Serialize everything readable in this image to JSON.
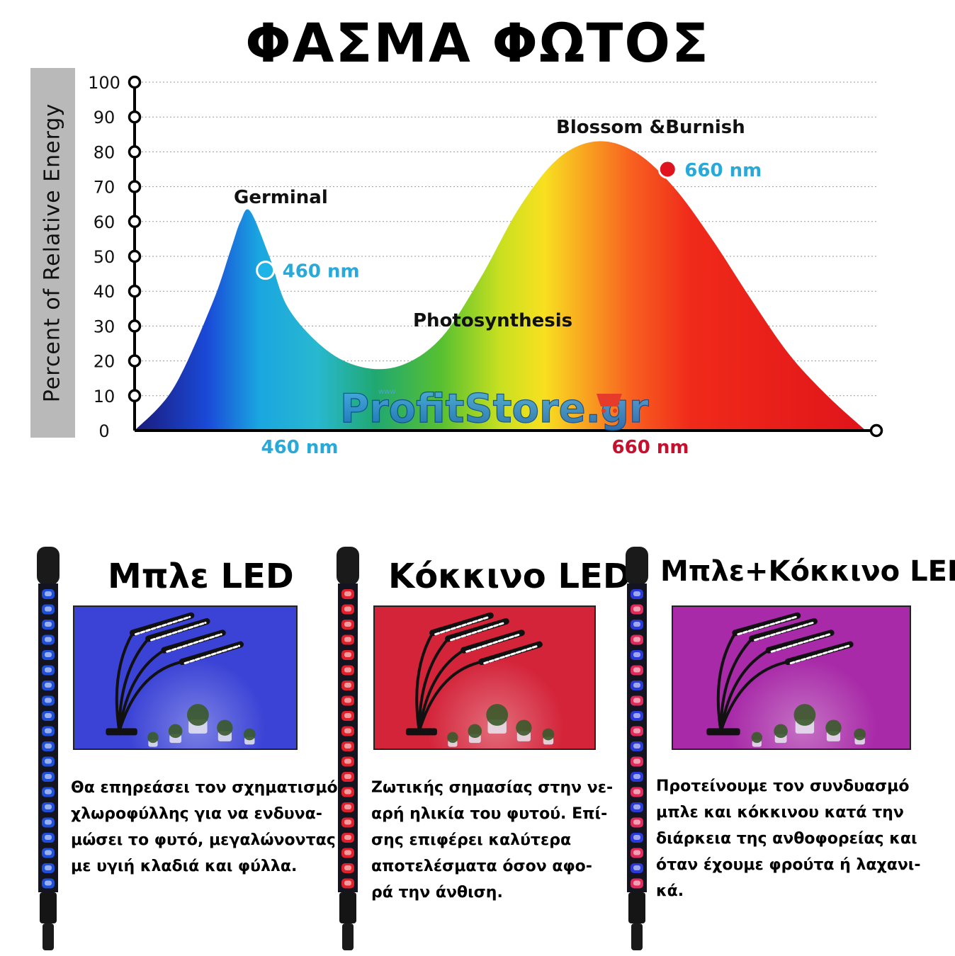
{
  "title": "ΦΑΣΜΑ ΦΩΤΟΣ",
  "chart_data": {
    "type": "area",
    "ylabel": "Percent of Relative Energy",
    "yticks": [
      0,
      10,
      20,
      30,
      40,
      50,
      60,
      70,
      80,
      90,
      100
    ],
    "ylim": [
      0,
      100
    ],
    "xlim": [
      400,
      780
    ],
    "grid": true,
    "x": [
      400,
      420,
      440,
      450,
      455,
      460,
      470,
      480,
      500,
      520,
      540,
      560,
      580,
      600,
      620,
      640,
      660,
      680,
      700,
      720,
      740,
      760,
      780
    ],
    "values": [
      0,
      12,
      36,
      52,
      60,
      63,
      50,
      35,
      23,
      18,
      19,
      27,
      44,
      64,
      78,
      83,
      80,
      70,
      55,
      38,
      22,
      10,
      0
    ],
    "x_markers": [
      {
        "label": "460 nm",
        "x": 460,
        "color": "#2aa9d8"
      },
      {
        "label": "660 nm",
        "x": 660,
        "color": "#c8102e"
      }
    ],
    "points": [
      {
        "label": "460 nm",
        "x": 468,
        "y": 46,
        "color": "#1fb4e8"
      },
      {
        "label": "660 nm",
        "x": 677,
        "y": 75,
        "color": "#e0141e"
      }
    ],
    "annotations": [
      "Germinal",
      "Photosynthesis",
      "Blossom &Burnish"
    ]
  },
  "watermark": "ProfitStore.gr",
  "products": [
    {
      "title": "Μπλε LED",
      "led_colors": [
        "#1f4fd8",
        "#1f4fd8"
      ],
      "photo_bg": "#3b43d6",
      "lines": [
        "Θα επηρεάσει τον σχηματισμό",
        "χλωροφύλλης για να ενδυνα-",
        "μώσει το φυτό, μεγαλώνοντας",
        "με υγιή κλαδιά και φύλλα."
      ]
    },
    {
      "title": "Κόκκινο LED",
      "led_colors": [
        "#e0202a",
        "#e0202a"
      ],
      "photo_bg": "#d4243a",
      "lines": [
        "Ζωτικής σημασίας στην νε-",
        "αρή ηλικία του φυτού. Επί-",
        "σης επιφέρει καλύτερα",
        "αποτελέσματα όσον αφο-",
        "ρά την άνθιση."
      ]
    },
    {
      "title": "Μπλε+Κόκκινο LED",
      "led_colors": [
        "#2a3ad8",
        "#e02a5a"
      ],
      "photo_bg": "#a82aa8",
      "lines": [
        "Προτείνουμε τον συνδυασμό",
        "μπλε και κόκκινου κατά την",
        "διάρκεια της ανθοφορείας και",
        "όταν έχουμε φρούτα ή λαχανι-",
        "κά."
      ]
    }
  ]
}
